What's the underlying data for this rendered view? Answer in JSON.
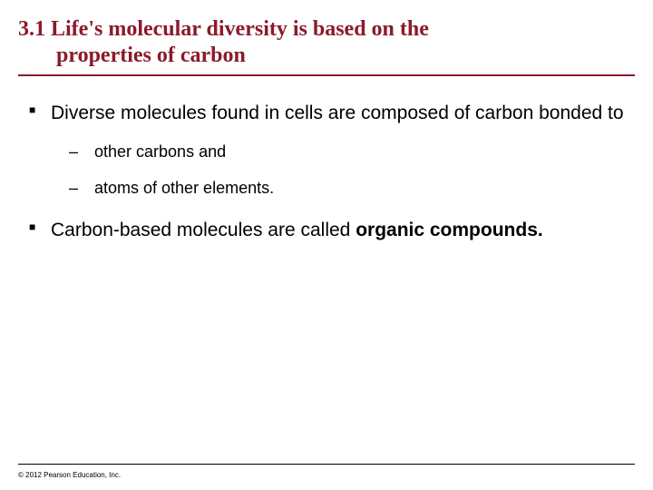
{
  "title": {
    "line1": "3.1 Life's molecular diversity is based on the",
    "line2": "properties of carbon",
    "color": "#8b1a2b",
    "fontsize_pt": 24,
    "underline_color": "#8b1a2b"
  },
  "bullets": {
    "color": "#000000",
    "square_bullet_color": "#000000",
    "main_fontsize_pt": 21,
    "sub_fontsize_pt": 18,
    "items": [
      {
        "text": "Diverse molecules found in cells are composed of carbon bonded to",
        "sub": [
          "other carbons and",
          "atoms of other elements."
        ]
      },
      {
        "prefix": "Carbon-based molecules are called ",
        "boldText": "organic compounds."
      }
    ]
  },
  "footer": {
    "copyright": "© 2012 Pearson Education, Inc.",
    "fontsize_pt": 8,
    "color": "#000000"
  },
  "background": "#ffffff"
}
